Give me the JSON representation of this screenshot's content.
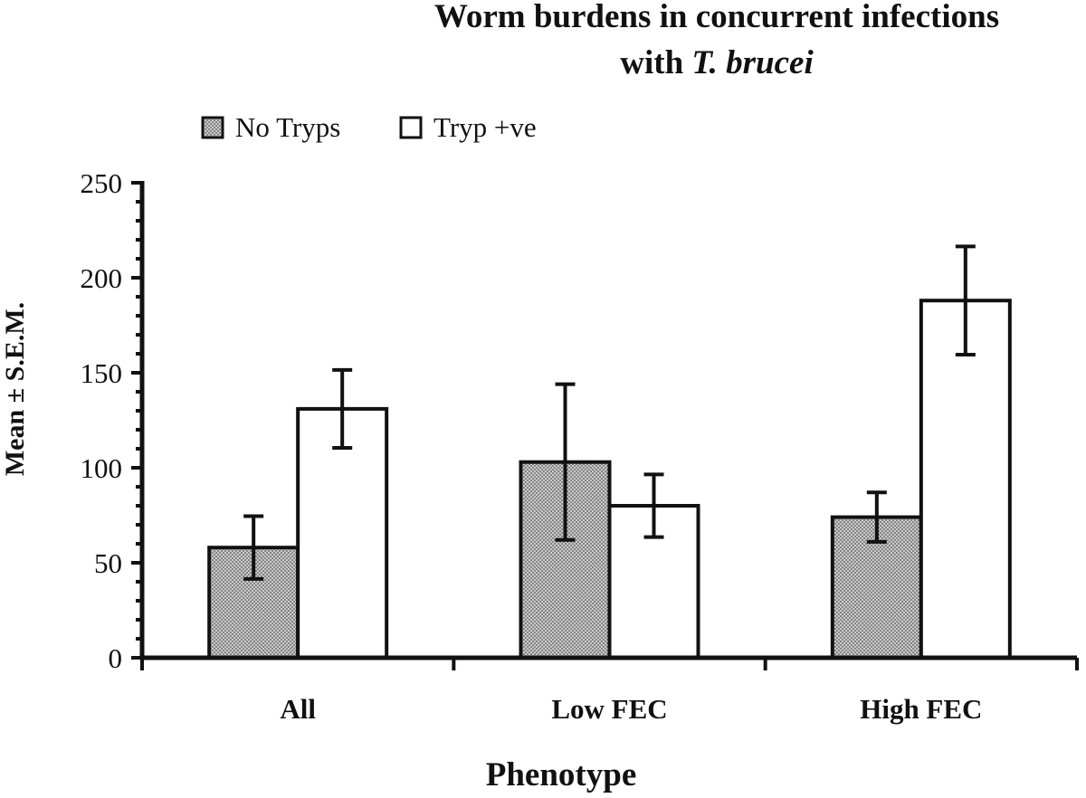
{
  "chart_data": {
    "type": "bar",
    "title_line1": "Worm burdens in concurrent infections",
    "title_line2_prefix": "with ",
    "title_line2_italic": "T. brucei",
    "xlabel": "Phenotype",
    "ylabel": "Mean ± S.E.M.",
    "ylim": [
      0,
      250
    ],
    "yticks": [
      0,
      50,
      100,
      150,
      200,
      250
    ],
    "categories": [
      "All",
      "Low FEC",
      "High FEC"
    ],
    "legend_position": "top-left",
    "series": [
      {
        "name": "No Tryps",
        "fill": "stippled-grey",
        "values": [
          58,
          103,
          74
        ],
        "errors": [
          16.5,
          41,
          13
        ]
      },
      {
        "name": "Tryp +ve",
        "fill": "white",
        "values": [
          131,
          80,
          188
        ],
        "errors": [
          20.5,
          16.5,
          28.5
        ]
      }
    ]
  }
}
